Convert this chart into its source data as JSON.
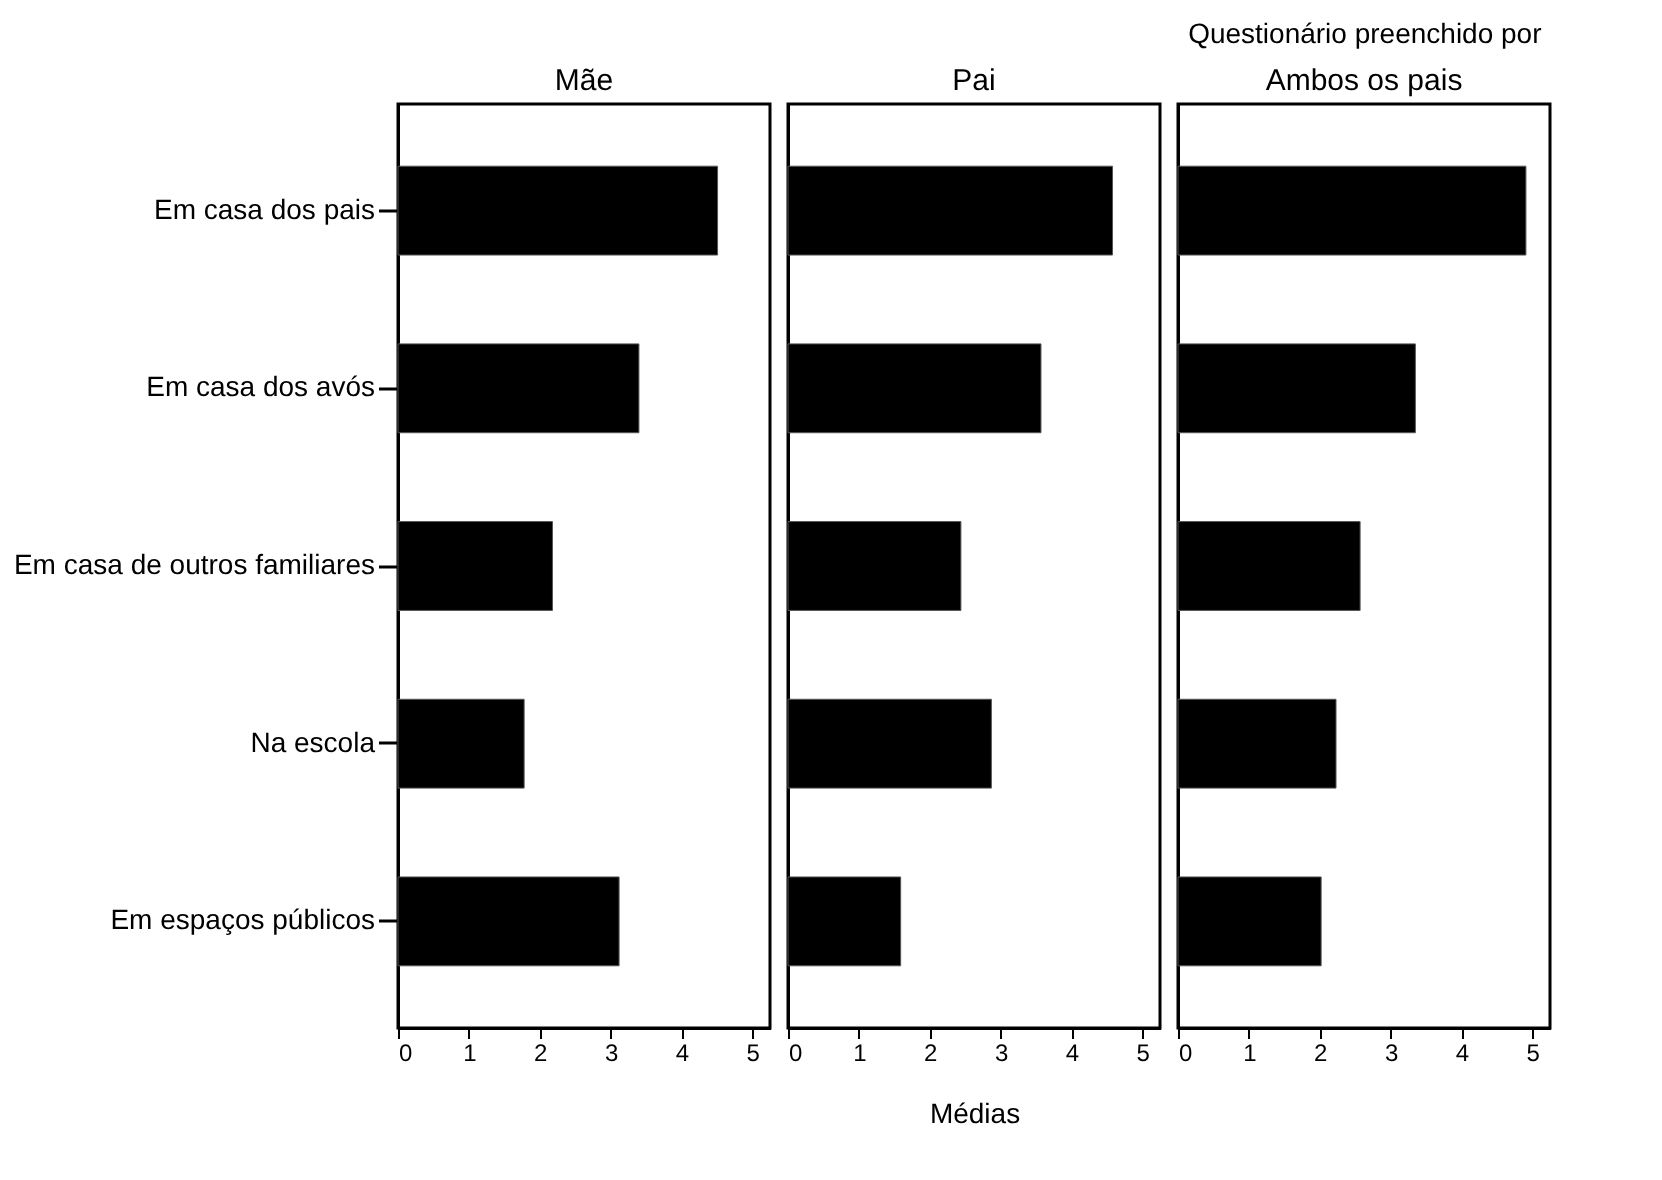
{
  "chart_data": [
    {
      "type": "bar",
      "orientation": "horizontal",
      "title": "Mãe",
      "categories": [
        "Em casa dos pais",
        "Em casa dos avós",
        "Em casa de outros familiares",
        "Na escola",
        "Em espaços públicos"
      ],
      "values": [
        4.51,
        3.4,
        2.18,
        1.78,
        3.12
      ],
      "color": "#000000",
      "xlim": [
        0,
        5.25
      ],
      "xticks": [
        0,
        1,
        2,
        3,
        4,
        5
      ],
      "grid": false,
      "legend": false
    },
    {
      "type": "bar",
      "orientation": "horizontal",
      "title": "Pai",
      "xlabel": "Médias",
      "annotations": [
        "Questionário preenchido por"
      ],
      "categories": [
        null,
        null,
        null,
        null,
        null
      ],
      "values": [
        4.58,
        3.57,
        2.44,
        2.87,
        1.59
      ],
      "color": "#000000",
      "xlim": [
        0,
        5.25
      ],
      "xticks": [
        0,
        1,
        2,
        3,
        4,
        5
      ],
      "grid": false,
      "legend": false,
      "tick_labels": "x"
    },
    {
      "type": "bar",
      "orientation": "horizontal",
      "title": "Ambos os pais",
      "categories": [
        null,
        null,
        null,
        null,
        null
      ],
      "values": [
        4.91,
        3.35,
        2.57,
        2.23,
        2.02
      ],
      "color": "#000000",
      "xlim": [
        0,
        5.25
      ],
      "xticks": [
        0,
        1,
        2,
        3,
        4,
        5
      ],
      "grid": false,
      "legend": false,
      "tick_labels": "x"
    }
  ]
}
